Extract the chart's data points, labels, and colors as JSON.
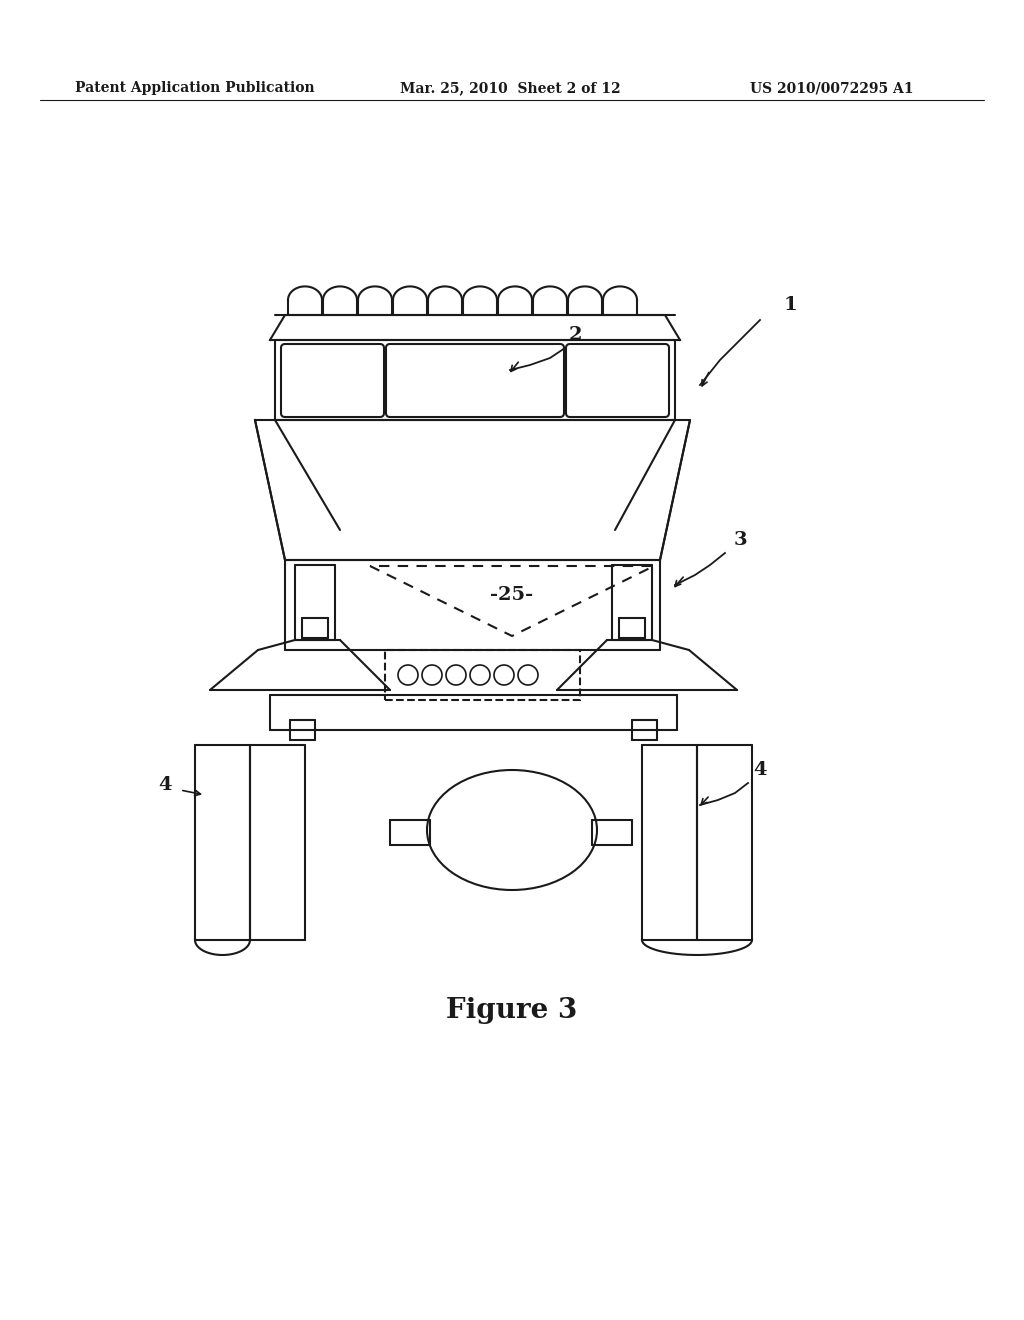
{
  "bg_color": "#ffffff",
  "line_color": "#1a1a1a",
  "header_left": "Patent Application Publication",
  "header_mid": "Mar. 25, 2010  Sheet 2 of 12",
  "header_right": "US 2010/0072295 A1",
  "figure_label": "Figure 3",
  "label_1": "1",
  "label_2": "2",
  "label_3": "3",
  "label_4": "4",
  "label_25": "-25-"
}
